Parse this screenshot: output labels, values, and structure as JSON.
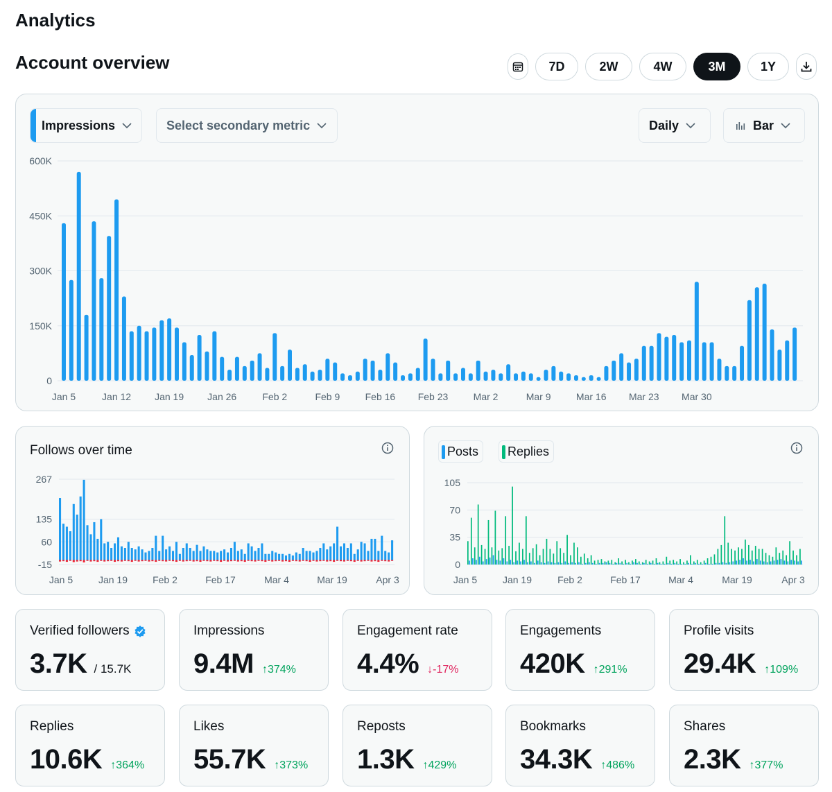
{
  "page": {
    "title": "Analytics",
    "section_title": "Account overview"
  },
  "range": {
    "calendar_icon": "calendar-icon",
    "download_icon": "download-icon",
    "options": [
      "7D",
      "2W",
      "4W",
      "3M",
      "1Y"
    ],
    "selected": "3M"
  },
  "controls": {
    "primary_metric": "Impressions",
    "secondary_metric_placeholder": "Select secondary metric",
    "granularity": "Daily",
    "chart_type": "Bar",
    "accent_color": "#1d9bf0"
  },
  "chart_data": [
    {
      "id": "impressions",
      "type": "bar",
      "title": "Impressions",
      "ylim": [
        0,
        600000
      ],
      "yticks": [
        0,
        150000,
        300000,
        450000,
        600000
      ],
      "ytick_labels": [
        "0",
        "150K",
        "300K",
        "450K",
        "600K"
      ],
      "xtick_labels": [
        "Jan 5",
        "Jan 12",
        "Jan 19",
        "Jan 26",
        "Feb 2",
        "Feb 9",
        "Feb 16",
        "Feb 23",
        "Mar 2",
        "Mar 9",
        "Mar 16",
        "Mar 23",
        "Mar 30"
      ],
      "color": "#1d9bf0",
      "values": [
        430000,
        275000,
        570000,
        180000,
        435000,
        280000,
        395000,
        495000,
        230000,
        135000,
        150000,
        135000,
        145000,
        165000,
        170000,
        145000,
        105000,
        70000,
        125000,
        80000,
        135000,
        65000,
        30000,
        65000,
        40000,
        55000,
        75000,
        35000,
        130000,
        40000,
        85000,
        35000,
        45000,
        25000,
        30000,
        60000,
        50000,
        20000,
        15000,
        25000,
        60000,
        55000,
        30000,
        75000,
        50000,
        15000,
        20000,
        35000,
        115000,
        60000,
        20000,
        55000,
        20000,
        35000,
        20000,
        55000,
        25000,
        30000,
        20000,
        45000,
        20000,
        25000,
        20000,
        10000,
        30000,
        40000,
        25000,
        20000,
        15000,
        10000,
        15000,
        10000,
        40000,
        55000,
        75000,
        50000,
        60000,
        95000,
        95000,
        130000,
        120000,
        125000,
        105000,
        110000,
        270000,
        105000,
        105000,
        60000,
        40000,
        40000,
        95000,
        220000,
        255000,
        265000,
        140000,
        85000,
        110000,
        145000
      ]
    },
    {
      "id": "follows",
      "type": "bar",
      "title": "Follows over time",
      "ylim": [
        -15,
        267
      ],
      "ytick_labels": [
        "267",
        "135",
        "60",
        "-15"
      ],
      "yticks": [
        267,
        135,
        60,
        -15
      ],
      "xtick_labels": [
        "Jan 5",
        "Jan 19",
        "Feb 2",
        "Feb 17",
        "Mar 4",
        "Mar 19",
        "Apr 3"
      ],
      "series": [
        {
          "name": "Follows",
          "color": "#1d9bf0",
          "values": [
            205,
            120,
            110,
            95,
            185,
            150,
            210,
            265,
            115,
            85,
            125,
            70,
            135,
            55,
            60,
            40,
            55,
            75,
            45,
            40,
            60,
            40,
            35,
            45,
            35,
            25,
            30,
            40,
            80,
            30,
            80,
            35,
            45,
            30,
            60,
            20,
            40,
            55,
            40,
            30,
            50,
            30,
            45,
            35,
            30,
            30,
            25,
            30,
            35,
            25,
            40,
            60,
            30,
            35,
            20,
            55,
            45,
            30,
            40,
            55,
            20,
            20,
            30,
            25,
            20,
            20,
            15,
            20,
            15,
            25,
            20,
            40,
            30,
            30,
            25,
            30,
            40,
            55,
            35,
            45,
            55,
            110,
            45,
            55,
            40,
            55,
            20,
            35,
            60,
            55,
            30,
            70,
            70,
            30,
            80,
            30,
            25,
            65
          ]
        },
        {
          "name": "Unfollows",
          "color": "#f4212e",
          "values": [
            -5,
            -4,
            -6,
            -3,
            -7,
            -5,
            -4,
            -8,
            -3,
            -5,
            -4,
            -6,
            -3,
            -5,
            -4,
            -3,
            -6,
            -4,
            -5,
            -3,
            -4,
            -6,
            -3,
            -5,
            -4,
            -3,
            -5,
            -4,
            -6,
            -3,
            -4,
            -5,
            -3,
            -4,
            -6,
            -3,
            -5,
            -4,
            -3,
            -5,
            -4,
            -6,
            -3,
            -4,
            -5,
            -3,
            -4,
            -6,
            -3,
            -5,
            -4,
            -3,
            -5,
            -4,
            -6,
            -3,
            -4,
            -5,
            -3,
            -4,
            -6,
            -3,
            -5,
            -4,
            -3,
            -5,
            -4,
            -6,
            -3,
            -4,
            -5,
            -3,
            -4,
            -6,
            -3,
            -5,
            -4,
            -3,
            -5,
            -4,
            -6,
            -3,
            -4,
            -5,
            -3,
            -4,
            -6,
            -3,
            -5,
            -4,
            -3,
            -5,
            -4,
            -6,
            -3,
            -4,
            -5,
            -3
          ]
        }
      ]
    },
    {
      "id": "posts_replies",
      "type": "bar",
      "title": "Posts and Replies",
      "ylim": [
        0,
        105
      ],
      "yticks": [
        0,
        35,
        70,
        105
      ],
      "ytick_labels": [
        "0",
        "35",
        "70",
        "105"
      ],
      "xtick_labels": [
        "Jan 5",
        "Jan 19",
        "Feb 2",
        "Feb 17",
        "Mar 4",
        "Mar 19",
        "Apr 3"
      ],
      "series": [
        {
          "name": "Posts",
          "color": "#1d9bf0",
          "values": [
            5,
            8,
            6,
            10,
            4,
            7,
            9,
            12,
            6,
            5,
            8,
            4,
            6,
            3,
            5,
            4,
            6,
            3,
            4,
            2,
            5,
            3,
            2,
            4,
            3,
            2,
            3,
            2,
            4,
            2,
            3,
            2,
            3,
            1,
            2,
            3,
            2,
            1,
            2,
            2,
            3,
            2,
            1,
            2,
            2,
            1,
            2,
            1,
            3,
            2,
            1,
            2,
            1,
            2,
            1,
            2,
            1,
            1,
            2,
            1,
            2,
            1,
            1,
            1,
            2,
            1,
            2,
            1,
            1,
            2,
            1,
            1,
            2,
            2,
            3,
            2,
            3,
            4,
            5,
            6,
            8,
            5,
            6,
            4,
            7,
            5,
            4,
            3,
            4,
            5,
            6,
            7,
            5,
            4,
            6,
            5,
            4,
            5
          ]
        },
        {
          "name": "Replies",
          "color": "#00ba7c",
          "values": [
            30,
            60,
            22,
            77,
            25,
            20,
            57,
            22,
            69,
            18,
            21,
            62,
            24,
            100,
            17,
            28,
            20,
            62,
            15,
            21,
            26,
            12,
            20,
            33,
            20,
            14,
            30,
            21,
            15,
            38,
            12,
            28,
            22,
            10,
            14,
            8,
            12,
            5,
            6,
            7,
            4,
            5,
            6,
            3,
            8,
            4,
            6,
            3,
            5,
            7,
            4,
            3,
            6,
            4,
            5,
            8,
            3,
            4,
            10,
            5,
            6,
            4,
            7,
            3,
            5,
            12,
            4,
            6,
            3,
            5,
            8,
            10,
            13,
            20,
            25,
            62,
            28,
            20,
            18,
            22,
            20,
            32,
            25,
            18,
            24,
            20,
            20,
            15,
            12,
            10,
            22,
            15,
            18,
            12,
            30,
            18,
            12,
            20
          ]
        }
      ]
    }
  ],
  "follows_card": {
    "title": "Follows over time",
    "info_icon": "info-icon"
  },
  "posts_card": {
    "legend_posts": "Posts",
    "legend_replies": "Replies",
    "info_icon": "info-icon"
  },
  "stats": [
    {
      "label": "Verified followers",
      "value": "3.7K",
      "sub": "/ 15.7K",
      "delta": "",
      "badge": "verified-badge-icon"
    },
    {
      "label": "Impressions",
      "value": "9.4M",
      "delta": "374%",
      "dir": "up"
    },
    {
      "label": "Engagement rate",
      "value": "4.4%",
      "delta": "-17%",
      "dir": "down"
    },
    {
      "label": "Engagements",
      "value": "420K",
      "delta": "291%",
      "dir": "up"
    },
    {
      "label": "Profile visits",
      "value": "29.4K",
      "delta": "109%",
      "dir": "up"
    },
    {
      "label": "Replies",
      "value": "10.6K",
      "delta": "364%",
      "dir": "up"
    },
    {
      "label": "Likes",
      "value": "55.7K",
      "delta": "373%",
      "dir": "up"
    },
    {
      "label": "Reposts",
      "value": "1.3K",
      "delta": "429%",
      "dir": "up"
    },
    {
      "label": "Bookmarks",
      "value": "34.3K",
      "delta": "486%",
      "dir": "up"
    },
    {
      "label": "Shares",
      "value": "2.3K",
      "delta": "377%",
      "dir": "up"
    }
  ]
}
